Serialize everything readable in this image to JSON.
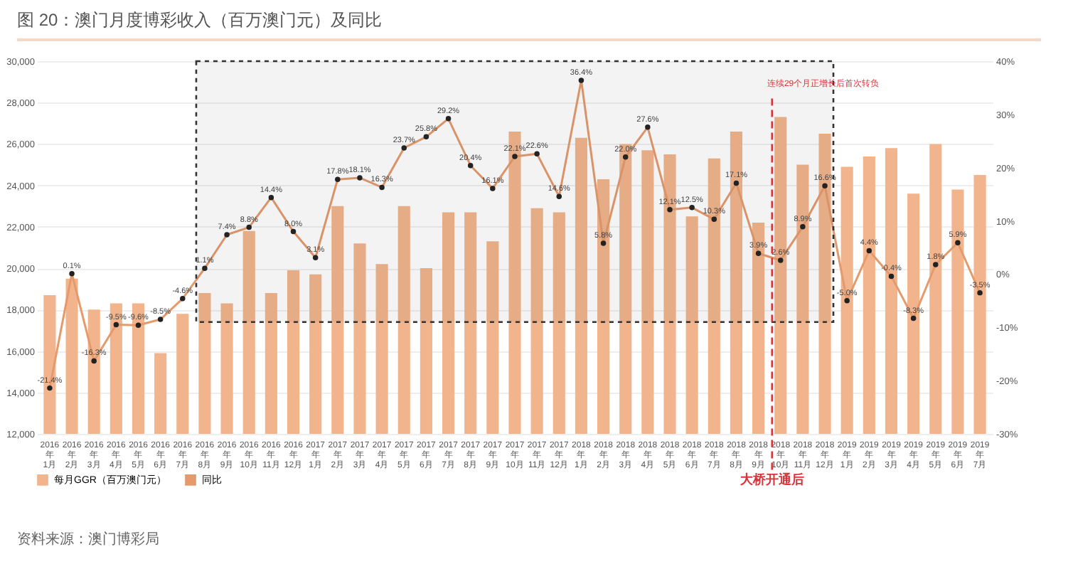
{
  "chart_data": {
    "type": "bar",
    "title": "图 20：澳门月度博彩收入（百万澳门元）及同比",
    "categories": [
      "2016年\n1月",
      "2016年\n2月",
      "2016年\n3月",
      "2016年\n4月",
      "2016年\n5月",
      "2016年\n6月",
      "2016年\n7月",
      "2016年\n8月",
      "2016年\n9月",
      "2016年\n10月",
      "2016年\n11月",
      "2016年\n12月",
      "2017年\n1月",
      "2017年\n2月",
      "2017年\n3月",
      "2017年\n4月",
      "2017年\n5月",
      "2017年\n6月",
      "2017年\n7月",
      "2017年\n8月",
      "2017年\n9月",
      "2017年\n10月",
      "2017年\n11月",
      "2017年\n12月",
      "2018年\n1月",
      "2018年\n2月",
      "2018年\n3月",
      "2018年\n4月",
      "2018年\n5月",
      "2018年\n6月",
      "2018年\n7月",
      "2018年\n8月",
      "2018年\n9月",
      "2018年\n10月",
      "2018年\n11月",
      "2018年\n12月",
      "2019年\n1月",
      "2019年\n2月",
      "2019年\n3月",
      "2019年\n4月",
      "2019年\n5月",
      "2019年\n6月",
      "2019年\n7月"
    ],
    "series": [
      {
        "name": "每月GGR（百万澳门元）",
        "color": "#f2b48c",
        "values": [
          18700,
          19500,
          18000,
          18300,
          18300,
          15900,
          17800,
          18800,
          18300,
          21800,
          18800,
          19900,
          19700,
          23000,
          21200,
          20200,
          23000,
          20000,
          22700,
          22700,
          21300,
          26600,
          22900,
          22700,
          26300,
          24300,
          26000,
          25700,
          25500,
          22500,
          25300,
          26600,
          22200,
          27300,
          25000,
          26500,
          24900,
          25400,
          25800,
          23600,
          26000,
          23800,
          24500
        ]
      },
      {
        "name": "同比",
        "type": "line",
        "axis": "y2",
        "color": "#e59a6c",
        "values": [
          -21.4,
          0.1,
          -16.3,
          -9.5,
          -9.6,
          -8.5,
          -4.6,
          1.1,
          7.4,
          8.8,
          14.4,
          8.0,
          3.1,
          17.8,
          18.1,
          16.3,
          23.7,
          25.8,
          29.2,
          20.4,
          16.1,
          22.1,
          22.6,
          14.6,
          36.4,
          5.8,
          22.0,
          27.6,
          12.1,
          12.5,
          10.3,
          17.1,
          3.9,
          2.6,
          8.9,
          16.6,
          -5.0,
          4.4,
          -0.4,
          -8.3,
          1.8,
          5.9,
          -3.5
        ],
        "value_labels": [
          "-21.4%",
          "0.1%",
          "-16.3%",
          "-9.5%",
          "-9.6%",
          "-8.5%",
          "-4.6%",
          "1.1%",
          "7.4%",
          "8.8%",
          "14.4%",
          "8.0%",
          "3.1%",
          "17.8%",
          "18.1%",
          "16.3%",
          "23.7%",
          "25.8%",
          "29.2%",
          "20.4%",
          "16.1%",
          "22.1%",
          "22.6%",
          "14.6%",
          "36.4%",
          "5.8%",
          "22.0%",
          "27.6%",
          "12.1%",
          "12.5%",
          "10.3%",
          "17.1%",
          "3.9%",
          "2.6%",
          "8.9%",
          "16.6%",
          "-5.0%",
          "4.4%",
          "-0.4%",
          "-8.3%",
          "1.8%",
          "5.9%",
          "-3.5%"
        ]
      }
    ],
    "ylim": [
      12000,
      30000
    ],
    "yticks": [
      {
        "value": 12000,
        "label": "12,000"
      },
      {
        "value": 14000,
        "label": "14,000"
      },
      {
        "value": 16000,
        "label": "16,000"
      },
      {
        "value": 18000,
        "label": "18,000"
      },
      {
        "value": 20000,
        "label": "20,000"
      },
      {
        "value": 22000,
        "label": "22,000"
      },
      {
        "value": 24000,
        "label": "24,000"
      },
      {
        "value": 26000,
        "label": "26,000"
      },
      {
        "value": 28000,
        "label": "28,000"
      },
      {
        "value": 30000,
        "label": "30,000"
      }
    ],
    "y2lim": [
      -30,
      40
    ],
    "y2ticks": [
      {
        "value": -30,
        "label": "-30%"
      },
      {
        "value": -20,
        "label": "-20%"
      },
      {
        "value": -10,
        "label": "-10%"
      },
      {
        "value": 0,
        "label": "0%"
      },
      {
        "value": 10,
        "label": "10%"
      },
      {
        "value": 20,
        "label": "20%"
      },
      {
        "value": 30,
        "label": "30%"
      },
      {
        "value": 40,
        "label": "40%"
      }
    ],
    "grid": "y",
    "legend": "bottom",
    "marker": "circle",
    "ref_lines": [
      {
        "axis": "x",
        "value": "2018年\n10月",
        "label": "大桥开通后",
        "color": "#d9343a",
        "line_style": "dashed"
      }
    ],
    "bands": [
      {
        "axis": "x",
        "from": "2016年\n8月",
        "to": "2018年\n12月",
        "color": "#333333"
      }
    ],
    "annotations": [
      "连续29个月正增长后首次转负",
      "资料来源：澳门博彩局"
    ]
  }
}
